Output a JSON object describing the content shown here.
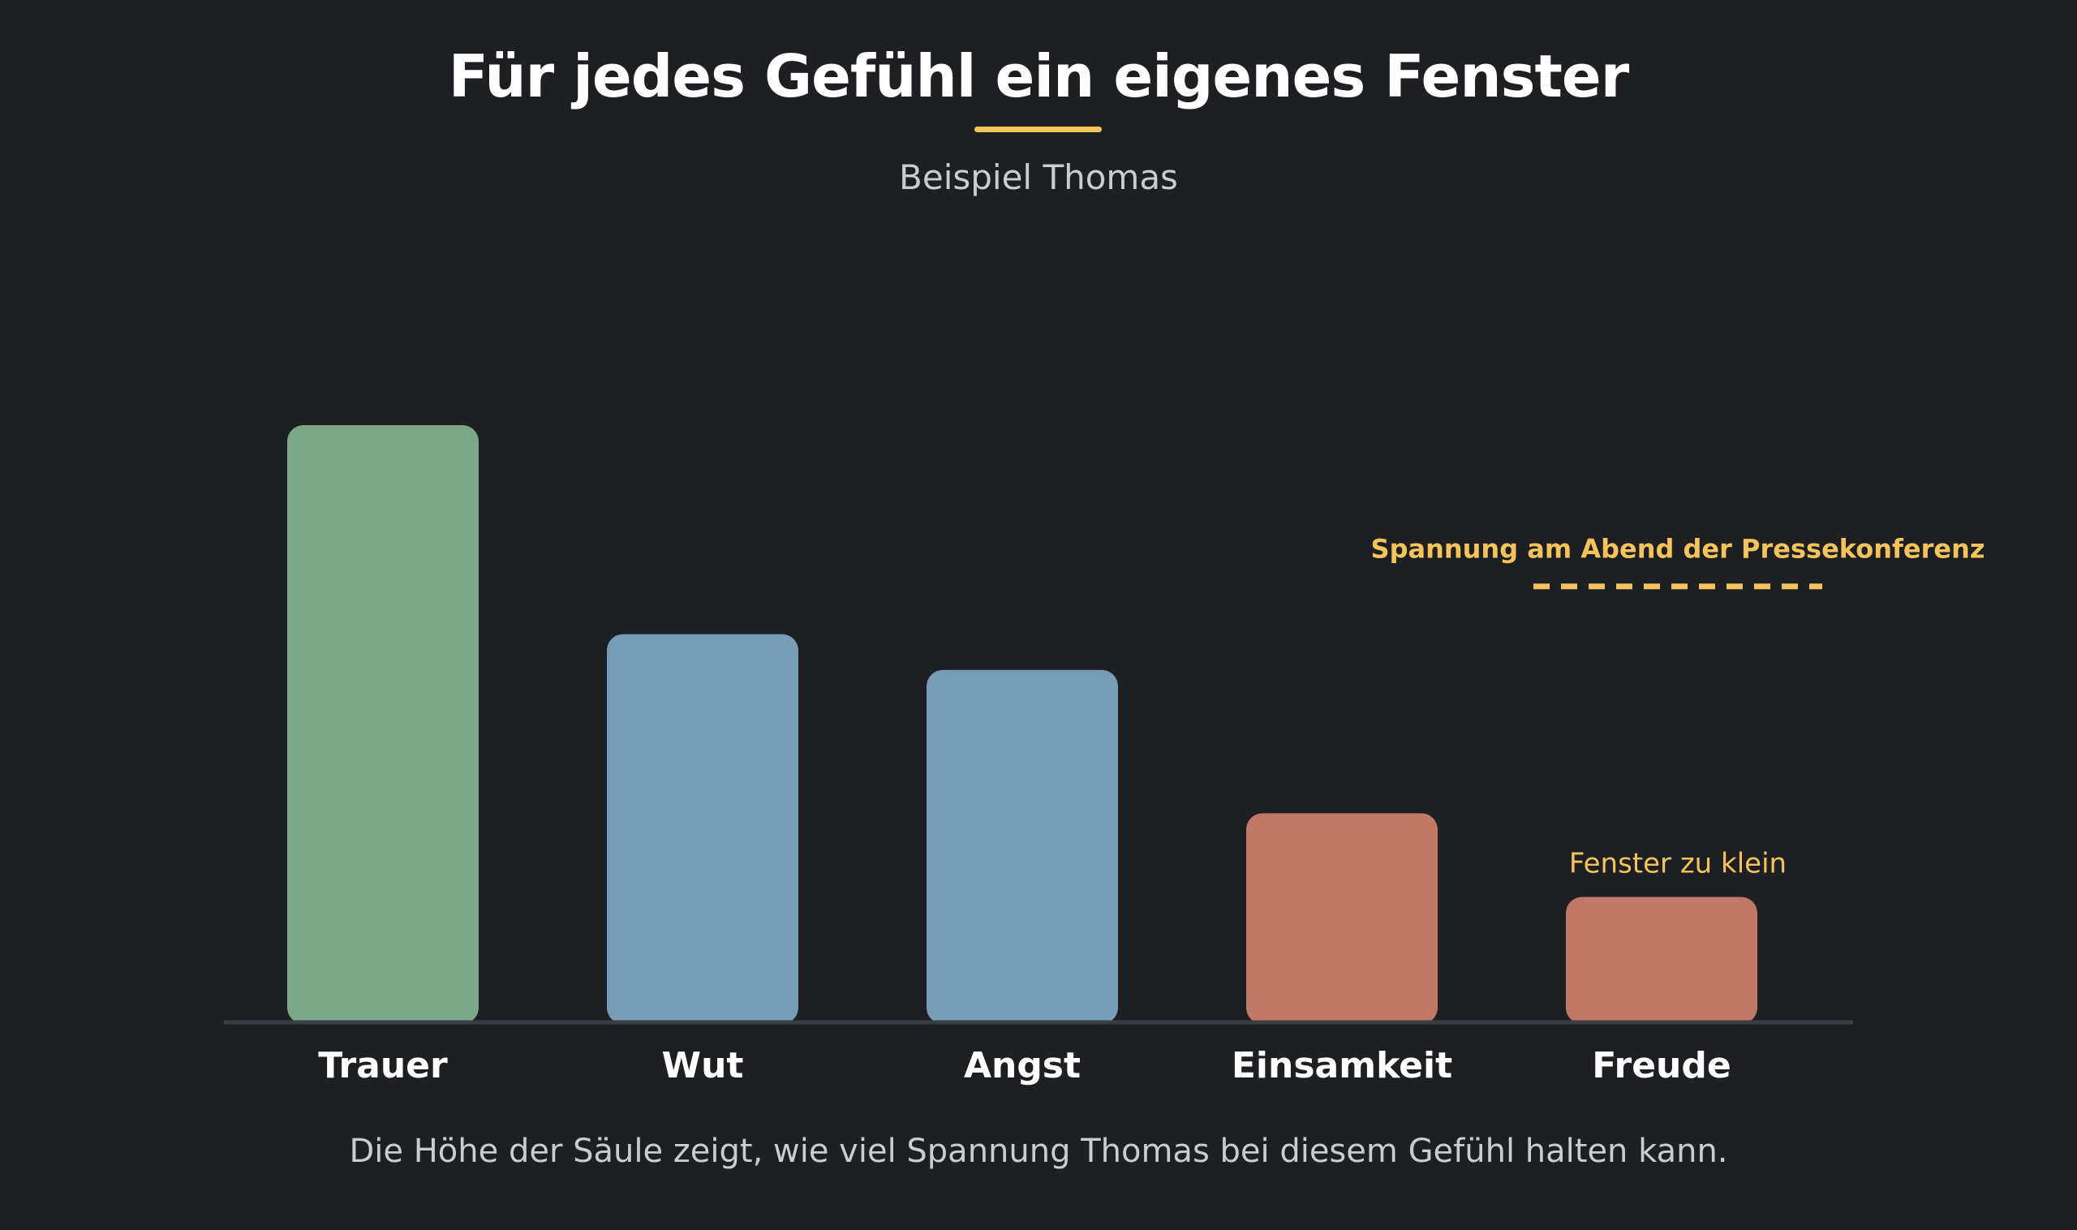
{
  "header": {
    "title": "Für jedes Gefühl ein eigenes Fenster",
    "subtitle": "Beispiel Thomas"
  },
  "footnote": "Die Höhe der Säule zeigt, wie viel Spannung Thomas bei diesem Gefühl halten kann.",
  "colors": {
    "background": "#1d1f23",
    "accent": "#f5c35b",
    "baseline": "#3a3d43",
    "green": "#7ba688",
    "blue": "#779cb8",
    "red": "#c27866"
  },
  "chart_data": {
    "type": "bar",
    "title": "Für jedes Gefühl ein eigenes Fenster",
    "subtitle": "Beispiel Thomas",
    "categories": [
      "Trauer",
      "Wut",
      "Angst",
      "Einsamkeit",
      "Freude"
    ],
    "values": [
      100,
      65,
      59,
      35,
      21
    ],
    "bar_colors": [
      "#7ba688",
      "#779cb8",
      "#779cb8",
      "#c27866",
      "#c27866"
    ],
    "ylim": [
      0,
      100
    ],
    "grid": false,
    "reference_line": {
      "label": "Spannung am Abend der Pressekonferenz",
      "value": 73,
      "style": "dashed",
      "color": "#f5c35b"
    },
    "annotations": [
      {
        "category": "Freude",
        "text": "Fenster zu klein",
        "color": "#f5c35b"
      }
    ]
  }
}
